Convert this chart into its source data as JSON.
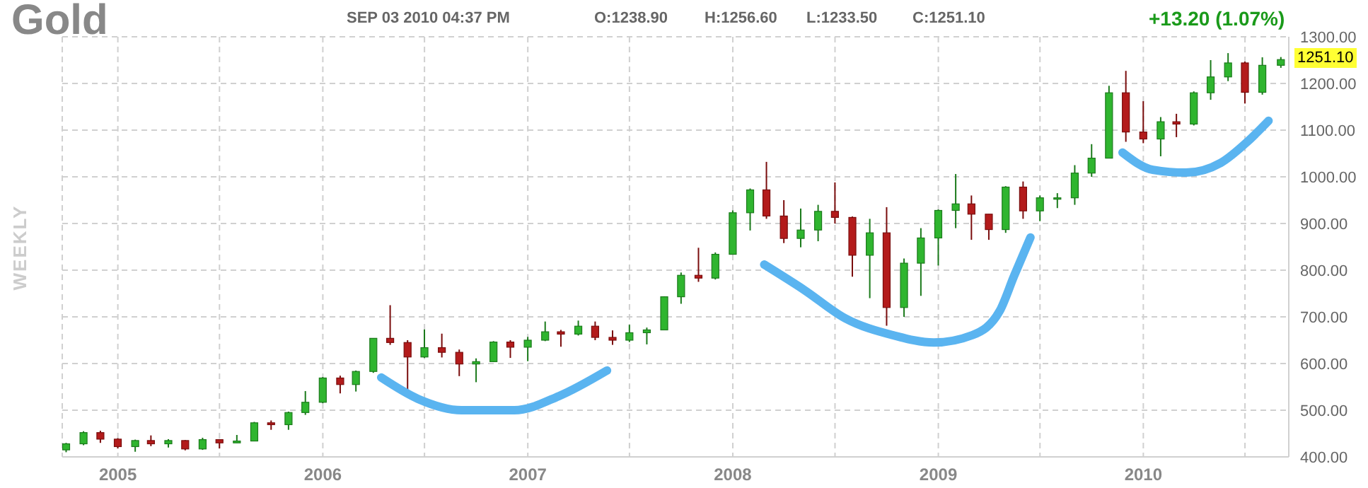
{
  "chart_data": {
    "type": "candlestick",
    "title": "Gold",
    "subtitle": "SEP 03 2010 04:37 PM",
    "ylabel": "WEEKLY",
    "annotations": [
      "O:1238.90",
      "H:1256.60",
      "L:1233.50",
      "C:1251.10",
      "+13.20 (1.07%)",
      "1251.10"
    ],
    "x": [
      "2004-10",
      "2004-11",
      "2004-12",
      "2005-01",
      "2005-02",
      "2005-03",
      "2005-04",
      "2005-05",
      "2005-06",
      "2005-07",
      "2005-08",
      "2005-09",
      "2005-10",
      "2005-11",
      "2005-12",
      "2006-01",
      "2006-02",
      "2006-03",
      "2006-04",
      "2006-05",
      "2006-06",
      "2006-07",
      "2006-08",
      "2006-09",
      "2006-10",
      "2006-11",
      "2006-12",
      "2007-01",
      "2007-02",
      "2007-03",
      "2007-04",
      "2007-05",
      "2007-06",
      "2007-07",
      "2007-08",
      "2007-09",
      "2007-10",
      "2007-11",
      "2007-12",
      "2008-01",
      "2008-02",
      "2008-03",
      "2008-04",
      "2008-05",
      "2008-06",
      "2008-07",
      "2008-08",
      "2008-09",
      "2008-10",
      "2008-11",
      "2008-12",
      "2009-01",
      "2009-02",
      "2009-03",
      "2009-04",
      "2009-05",
      "2009-06",
      "2009-07",
      "2009-08",
      "2009-09",
      "2009-10",
      "2009-11",
      "2009-12",
      "2010-01",
      "2010-02",
      "2010-03",
      "2010-04",
      "2010-05",
      "2010-06",
      "2010-07",
      "2010-08",
      "2010-09-03"
    ],
    "ohlc": [
      [
        415,
        430,
        410,
        428
      ],
      [
        428,
        455,
        425,
        452
      ],
      [
        452,
        456,
        430,
        438
      ],
      [
        438,
        440,
        418,
        422
      ],
      [
        422,
        437,
        411,
        435
      ],
      [
        435,
        446,
        423,
        428
      ],
      [
        428,
        438,
        420,
        435
      ],
      [
        435,
        436,
        414,
        417
      ],
      [
        417,
        441,
        415,
        437
      ],
      [
        437,
        438,
        418,
        430
      ],
      [
        430,
        447,
        430,
        434
      ],
      [
        434,
        475,
        434,
        473
      ],
      [
        473,
        478,
        458,
        469
      ],
      [
        469,
        497,
        458,
        495
      ],
      [
        495,
        541,
        490,
        517
      ],
      [
        517,
        571,
        515,
        569
      ],
      [
        569,
        574,
        536,
        555
      ],
      [
        555,
        585,
        540,
        583
      ],
      [
        583,
        654,
        580,
        654
      ],
      [
        654,
        725,
        640,
        645
      ],
      [
        645,
        650,
        543,
        614
      ],
      [
        614,
        673,
        612,
        634
      ],
      [
        634,
        664,
        613,
        624
      ],
      [
        624,
        630,
        573,
        599
      ],
      [
        599,
        611,
        560,
        604
      ],
      [
        604,
        648,
        603,
        646
      ],
      [
        646,
        650,
        612,
        635
      ],
      [
        635,
        657,
        605,
        650
      ],
      [
        650,
        690,
        648,
        668
      ],
      [
        668,
        672,
        636,
        663
      ],
      [
        663,
        692,
        660,
        680
      ],
      [
        680,
        690,
        650,
        656
      ],
      [
        656,
        671,
        640,
        650
      ],
      [
        650,
        683,
        646,
        666
      ],
      [
        666,
        677,
        641,
        672
      ],
      [
        672,
        744,
        672,
        743
      ],
      [
        743,
        795,
        728,
        789
      ],
      [
        789,
        848,
        775,
        783
      ],
      [
        783,
        838,
        780,
        834
      ],
      [
        834,
        928,
        834,
        923
      ],
      [
        923,
        975,
        885,
        972
      ],
      [
        972,
        1032,
        910,
        916
      ],
      [
        916,
        950,
        858,
        868
      ],
      [
        868,
        932,
        849,
        886
      ],
      [
        886,
        940,
        862,
        926
      ],
      [
        926,
        988,
        900,
        913
      ],
      [
        913,
        915,
        786,
        832
      ],
      [
        832,
        910,
        740,
        880
      ],
      [
        880,
        935,
        681,
        720
      ],
      [
        720,
        825,
        700,
        815
      ],
      [
        815,
        890,
        745,
        869
      ],
      [
        869,
        930,
        810,
        928
      ],
      [
        928,
        1006,
        890,
        942
      ],
      [
        942,
        960,
        865,
        920
      ],
      [
        920,
        920,
        865,
        887
      ],
      [
        887,
        980,
        880,
        978
      ],
      [
        978,
        990,
        910,
        927
      ],
      [
        927,
        960,
        905,
        955
      ],
      [
        955,
        965,
        933,
        955
      ],
      [
        955,
        1025,
        940,
        1008
      ],
      [
        1008,
        1070,
        1000,
        1040
      ],
      [
        1040,
        1195,
        1040,
        1180
      ],
      [
        1180,
        1227,
        1075,
        1096
      ],
      [
        1096,
        1162,
        1072,
        1081
      ],
      [
        1081,
        1128,
        1044,
        1118
      ],
      [
        1118,
        1135,
        1085,
        1113
      ],
      [
        1113,
        1183,
        1110,
        1180
      ],
      [
        1180,
        1250,
        1165,
        1214
      ],
      [
        1214,
        1265,
        1205,
        1244
      ],
      [
        1244,
        1247,
        1157,
        1181
      ],
      [
        1181,
        1256,
        1176,
        1238.9
      ],
      [
        1238.9,
        1256.6,
        1233.5,
        1251.1
      ]
    ],
    "series": [
      {
        "type": "line",
        "color": "#5ab4f0",
        "x": [
          "2006-04-15",
          "2006-06-20",
          "2006-09-05",
          "2006-12-08",
          "2007-02-25",
          "2007-05-22"
        ],
        "values": [
          570,
          524,
          500,
          500,
          530,
          585
        ]
      },
      {
        "type": "line",
        "color": "#5ab4f0",
        "x": [
          "2008-02-26",
          "2008-05-08",
          "2008-07-19",
          "2008-10-11",
          "2008-12-24",
          "2009-03-03",
          "2009-04-20",
          "2009-05-16",
          "2009-06-14"
        ],
        "values": [
          812,
          757,
          697,
          661,
          645,
          661,
          712,
          788,
          870
        ]
      },
      {
        "type": "line",
        "color": "#5ab4f0",
        "x": [
          "2009-11-25",
          "2010-01-18",
          "2010-03-18",
          "2010-05-19",
          "2010-07-06",
          "2010-08-12"
        ],
        "values": [
          1052,
          1015,
          1009,
          1030,
          1076,
          1120
        ]
      }
    ],
    "xlim": [
      "2004-09-24",
      "2010-09-17"
    ],
    "xticks": [
      "2005",
      {
        "value": "2005-07",
        "label": null
      },
      "2006",
      {
        "value": "2006-07",
        "label": null
      },
      "2007",
      {
        "value": "2007-07",
        "label": null
      },
      "2008",
      {
        "value": "2008-07",
        "label": null
      },
      "2009",
      {
        "value": "2009-07",
        "label": null
      },
      "2010",
      {
        "value": "2010-07",
        "label": null
      }
    ],
    "ylim": [
      400,
      1300
    ],
    "yticks": [
      {
        "value": 400,
        "label": "400.00"
      },
      {
        "value": 500,
        "label": "500.00"
      },
      {
        "value": 600,
        "label": "600.00"
      },
      {
        "value": 700,
        "label": "700.00"
      },
      {
        "value": 800,
        "label": "800.00"
      },
      {
        "value": 900,
        "label": "900.00"
      },
      {
        "value": 1000,
        "label": "1000.00"
      },
      {
        "value": 1100,
        "label": "1100.00"
      },
      {
        "value": 1200,
        "label": "1200.00"
      },
      {
        "value": 1300,
        "label": "1300.00"
      }
    ],
    "grid": true
  }
}
